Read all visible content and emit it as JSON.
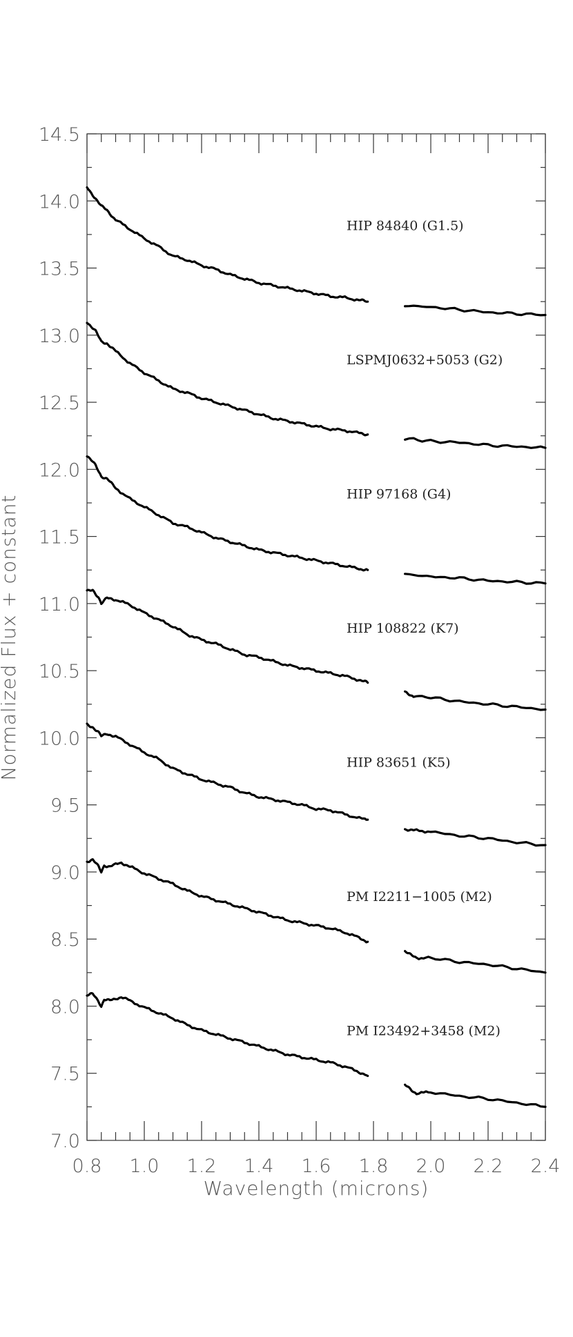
{
  "chart_data": {
    "type": "line",
    "title": "",
    "xlabel": "Wavelength (microns)",
    "ylabel": "Normalized Flux + constant",
    "xlim": [
      0.8,
      2.4
    ],
    "ylim": [
      7.0,
      14.5
    ],
    "x_ticks": [
      "0.8",
      "1.0",
      "1.2",
      "1.4",
      "1.6",
      "1.8",
      "2.0",
      "2.2",
      "2.4"
    ],
    "y_ticks": [
      "7.0",
      "7.5",
      "8.0",
      "8.5",
      "9.0",
      "9.5",
      "10.0",
      "10.5",
      "11.0",
      "11.5",
      "12.0",
      "12.5",
      "13.0",
      "13.5",
      "14.0",
      "14.5"
    ],
    "grid": false,
    "gap": [
      1.78,
      1.91
    ],
    "series": [
      {
        "name": "HIP 84840 (G1.5)",
        "label_y": 13.82,
        "segments": [
          [
            [
              0.8,
              14.1
            ],
            [
              0.83,
              14.02
            ],
            [
              0.85,
              13.96
            ],
            [
              0.87,
              13.93
            ],
            [
              0.9,
              13.86
            ],
            [
              0.95,
              13.79
            ],
            [
              1.0,
              13.72
            ],
            [
              1.05,
              13.66
            ],
            [
              1.1,
              13.59
            ],
            [
              1.15,
              13.56
            ],
            [
              1.2,
              13.52
            ],
            [
              1.25,
              13.49
            ],
            [
              1.3,
              13.45
            ],
            [
              1.35,
              13.42
            ],
            [
              1.4,
              13.39
            ],
            [
              1.45,
              13.37
            ],
            [
              1.5,
              13.35
            ],
            [
              1.55,
              13.33
            ],
            [
              1.6,
              13.31
            ],
            [
              1.65,
              13.29
            ],
            [
              1.7,
              13.28
            ],
            [
              1.75,
              13.26
            ],
            [
              1.78,
              13.25
            ]
          ],
          [
            [
              1.91,
              13.22
            ],
            [
              2.0,
              13.21
            ],
            [
              2.1,
              13.19
            ],
            [
              2.2,
              13.17
            ],
            [
              2.3,
              13.16
            ],
            [
              2.4,
              13.15
            ]
          ]
        ]
      },
      {
        "name": "LSPMJ0632+5053 (G2)",
        "label_y": 12.82,
        "segments": [
          [
            [
              0.8,
              13.1
            ],
            [
              0.83,
              13.03
            ],
            [
              0.85,
              12.95
            ],
            [
              0.87,
              12.94
            ],
            [
              0.9,
              12.88
            ],
            [
              0.95,
              12.79
            ],
            [
              1.0,
              12.72
            ],
            [
              1.05,
              12.66
            ],
            [
              1.1,
              12.6
            ],
            [
              1.15,
              12.57
            ],
            [
              1.2,
              12.53
            ],
            [
              1.25,
              12.5
            ],
            [
              1.3,
              12.47
            ],
            [
              1.35,
              12.44
            ],
            [
              1.4,
              12.41
            ],
            [
              1.45,
              12.38
            ],
            [
              1.5,
              12.36
            ],
            [
              1.55,
              12.34
            ],
            [
              1.6,
              12.32
            ],
            [
              1.65,
              12.3
            ],
            [
              1.7,
              12.29
            ],
            [
              1.75,
              12.27
            ],
            [
              1.78,
              12.26
            ]
          ],
          [
            [
              1.91,
              12.23
            ],
            [
              2.0,
              12.21
            ],
            [
              2.1,
              12.2
            ],
            [
              2.2,
              12.18
            ],
            [
              2.3,
              12.17
            ],
            [
              2.4,
              12.16
            ]
          ]
        ]
      },
      {
        "name": "HIP 97168 (G4)",
        "label_y": 11.82,
        "segments": [
          [
            [
              0.8,
              12.1
            ],
            [
              0.83,
              12.03
            ],
            [
              0.85,
              11.95
            ],
            [
              0.87,
              11.93
            ],
            [
              0.9,
              11.86
            ],
            [
              0.95,
              11.78
            ],
            [
              1.0,
              11.72
            ],
            [
              1.05,
              11.66
            ],
            [
              1.1,
              11.6
            ],
            [
              1.15,
              11.57
            ],
            [
              1.2,
              11.53
            ],
            [
              1.25,
              11.49
            ],
            [
              1.3,
              11.46
            ],
            [
              1.35,
              11.43
            ],
            [
              1.4,
              11.4
            ],
            [
              1.45,
              11.38
            ],
            [
              1.5,
              11.36
            ],
            [
              1.55,
              11.34
            ],
            [
              1.6,
              11.32
            ],
            [
              1.65,
              11.3
            ],
            [
              1.7,
              11.28
            ],
            [
              1.75,
              11.26
            ],
            [
              1.78,
              11.25
            ]
          ],
          [
            [
              1.91,
              11.22
            ],
            [
              2.0,
              11.2
            ],
            [
              2.1,
              11.19
            ],
            [
              2.2,
              11.17
            ],
            [
              2.3,
              11.16
            ],
            [
              2.4,
              11.15
            ]
          ]
        ]
      },
      {
        "name": "HIP 108822 (K7)",
        "label_y": 10.82,
        "segments": [
          [
            [
              0.8,
              11.09
            ],
            [
              0.82,
              11.1
            ],
            [
              0.84,
              11.05
            ],
            [
              0.85,
              11.0
            ],
            [
              0.87,
              11.04
            ],
            [
              0.9,
              11.03
            ],
            [
              0.95,
              10.99
            ],
            [
              1.0,
              10.93
            ],
            [
              1.05,
              10.88
            ],
            [
              1.1,
              10.83
            ],
            [
              1.15,
              10.77
            ],
            [
              1.2,
              10.73
            ],
            [
              1.25,
              10.7
            ],
            [
              1.3,
              10.66
            ],
            [
              1.35,
              10.62
            ],
            [
              1.4,
              10.6
            ],
            [
              1.45,
              10.57
            ],
            [
              1.5,
              10.54
            ],
            [
              1.55,
              10.52
            ],
            [
              1.6,
              10.5
            ],
            [
              1.65,
              10.48
            ],
            [
              1.7,
              10.46
            ],
            [
              1.75,
              10.43
            ],
            [
              1.78,
              10.41
            ]
          ],
          [
            [
              1.91,
              10.34
            ],
            [
              1.94,
              10.31
            ],
            [
              2.0,
              10.3
            ],
            [
              2.1,
              10.27
            ],
            [
              2.2,
              10.25
            ],
            [
              2.3,
              10.23
            ],
            [
              2.4,
              10.21
            ]
          ]
        ]
      },
      {
        "name": "HIP 83651 (K5)",
        "label_y": 9.82,
        "segments": [
          [
            [
              0.8,
              10.1
            ],
            [
              0.82,
              10.08
            ],
            [
              0.84,
              10.04
            ],
            [
              0.85,
              10.01
            ],
            [
              0.87,
              10.03
            ],
            [
              0.9,
              10.01
            ],
            [
              0.95,
              9.95
            ],
            [
              1.0,
              9.89
            ],
            [
              1.05,
              9.84
            ],
            [
              1.1,
              9.77
            ],
            [
              1.15,
              9.73
            ],
            [
              1.2,
              9.69
            ],
            [
              1.25,
              9.66
            ],
            [
              1.3,
              9.63
            ],
            [
              1.35,
              9.59
            ],
            [
              1.4,
              9.56
            ],
            [
              1.45,
              9.54
            ],
            [
              1.5,
              9.52
            ],
            [
              1.55,
              9.5
            ],
            [
              1.6,
              9.47
            ],
            [
              1.65,
              9.46
            ],
            [
              1.7,
              9.43
            ],
            [
              1.75,
              9.4
            ],
            [
              1.78,
              9.39
            ]
          ],
          [
            [
              1.91,
              9.32
            ],
            [
              1.94,
              9.31
            ],
            [
              2.0,
              9.3
            ],
            [
              2.1,
              9.27
            ],
            [
              2.2,
              9.25
            ],
            [
              2.3,
              9.22
            ],
            [
              2.4,
              9.2
            ]
          ]
        ]
      },
      {
        "name": "PM I2211−1005 (M2)",
        "label_y": 8.82,
        "segments": [
          [
            [
              0.8,
              9.08
            ],
            [
              0.82,
              9.09
            ],
            [
              0.84,
              9.04
            ],
            [
              0.85,
              9.0
            ],
            [
              0.86,
              9.05
            ],
            [
              0.88,
              9.04
            ],
            [
              0.92,
              9.07
            ],
            [
              0.95,
              9.04
            ],
            [
              1.0,
              8.99
            ],
            [
              1.05,
              8.95
            ],
            [
              1.1,
              8.91
            ],
            [
              1.15,
              8.86
            ],
            [
              1.2,
              8.82
            ],
            [
              1.25,
              8.79
            ],
            [
              1.3,
              8.76
            ],
            [
              1.35,
              8.73
            ],
            [
              1.4,
              8.7
            ],
            [
              1.45,
              8.67
            ],
            [
              1.5,
              8.64
            ],
            [
              1.55,
              8.62
            ],
            [
              1.6,
              8.6
            ],
            [
              1.65,
              8.58
            ],
            [
              1.7,
              8.55
            ],
            [
              1.75,
              8.51
            ],
            [
              1.78,
              8.48
            ]
          ],
          [
            [
              1.91,
              8.41
            ],
            [
              1.93,
              8.38
            ],
            [
              1.95,
              8.36
            ],
            [
              2.0,
              8.36
            ],
            [
              2.1,
              8.33
            ],
            [
              2.2,
              8.31
            ],
            [
              2.3,
              8.28
            ],
            [
              2.4,
              8.25
            ]
          ]
        ]
      },
      {
        "name": "PM I23492+3458 (M2)",
        "label_y": 7.82,
        "segments": [
          [
            [
              0.8,
              8.08
            ],
            [
              0.82,
              8.09
            ],
            [
              0.84,
              8.04
            ],
            [
              0.85,
              8.0
            ],
            [
              0.86,
              8.05
            ],
            [
              0.88,
              8.04
            ],
            [
              0.92,
              8.07
            ],
            [
              0.95,
              8.04
            ],
            [
              1.0,
              7.99
            ],
            [
              1.05,
              7.95
            ],
            [
              1.1,
              7.91
            ],
            [
              1.15,
              7.86
            ],
            [
              1.2,
              7.82
            ],
            [
              1.25,
              7.79
            ],
            [
              1.3,
              7.76
            ],
            [
              1.35,
              7.73
            ],
            [
              1.4,
              7.7
            ],
            [
              1.45,
              7.67
            ],
            [
              1.5,
              7.64
            ],
            [
              1.55,
              7.62
            ],
            [
              1.6,
              7.6
            ],
            [
              1.65,
              7.58
            ],
            [
              1.7,
              7.55
            ],
            [
              1.75,
              7.51
            ],
            [
              1.78,
              7.48
            ]
          ],
          [
            [
              1.91,
              7.41
            ],
            [
              1.93,
              7.38
            ],
            [
              1.95,
              7.35
            ],
            [
              2.0,
              7.36
            ],
            [
              2.1,
              7.33
            ],
            [
              2.2,
              7.31
            ],
            [
              2.3,
              7.28
            ],
            [
              2.4,
              7.25
            ]
          ]
        ]
      }
    ]
  }
}
